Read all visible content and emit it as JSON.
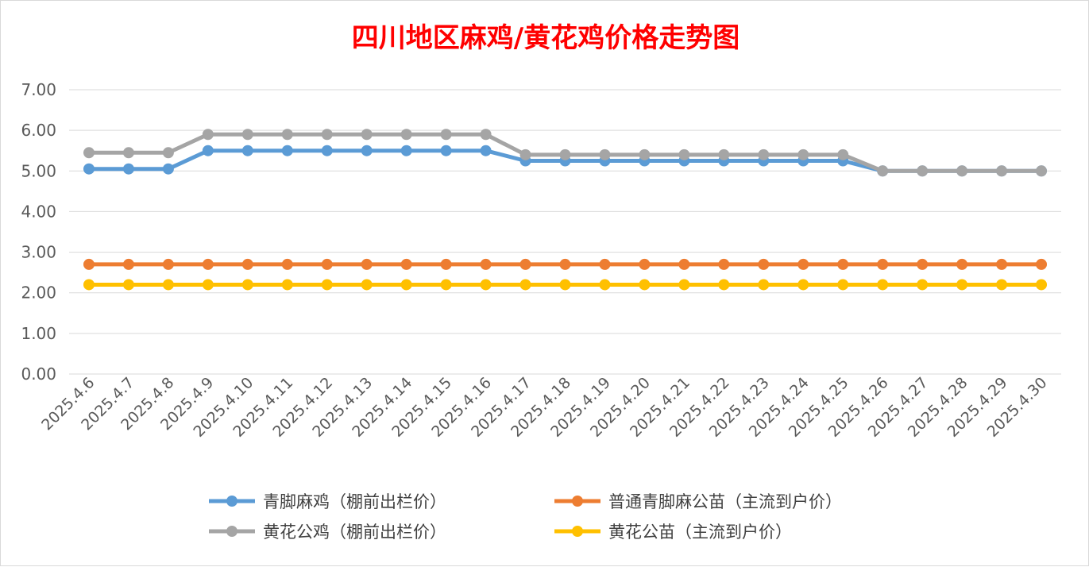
{
  "chart_data": {
    "type": "line",
    "title": "四川地区麻鸡/黄花鸡价格走势图",
    "xlabel": "",
    "ylabel": "",
    "ylim": [
      0,
      7
    ],
    "yticks": [
      "0.00",
      "1.00",
      "2.00",
      "3.00",
      "4.00",
      "5.00",
      "6.00",
      "7.00"
    ],
    "grid": true,
    "legend_position": "bottom",
    "categories": [
      "2025.4.6",
      "2025.4.7",
      "2025.4.8",
      "2025.4.9",
      "2025.4.10",
      "2025.4.11",
      "2025.4.12",
      "2025.4.13",
      "2025.4.14",
      "2025.4.15",
      "2025.4.16",
      "2025.4.17",
      "2025.4.18",
      "2025.4.19",
      "2025.4.20",
      "2025.4.21",
      "2025.4.22",
      "2025.4.23",
      "2025.4.24",
      "2025.4.25",
      "2025.4.26",
      "2025.4.27",
      "2025.4.28",
      "2025.4.29",
      "2025.4.30"
    ],
    "series": [
      {
        "name": "青脚麻鸡（棚前出栏价）",
        "color": "#5b9bd5",
        "values": [
          5.05,
          5.05,
          5.05,
          5.5,
          5.5,
          5.5,
          5.5,
          5.5,
          5.5,
          5.5,
          5.5,
          5.25,
          5.25,
          5.25,
          5.25,
          5.25,
          5.25,
          5.25,
          5.25,
          5.25,
          5.0,
          5.0,
          5.0,
          5.0,
          5.0
        ]
      },
      {
        "name": "普通青脚麻公苗（主流到户价）",
        "color": "#ed7d31",
        "values": [
          2.7,
          2.7,
          2.7,
          2.7,
          2.7,
          2.7,
          2.7,
          2.7,
          2.7,
          2.7,
          2.7,
          2.7,
          2.7,
          2.7,
          2.7,
          2.7,
          2.7,
          2.7,
          2.7,
          2.7,
          2.7,
          2.7,
          2.7,
          2.7,
          2.7
        ]
      },
      {
        "name": "黄花公鸡（棚前出栏价）",
        "color": "#a5a5a5",
        "values": [
          5.45,
          5.45,
          5.45,
          5.9,
          5.9,
          5.9,
          5.9,
          5.9,
          5.9,
          5.9,
          5.9,
          5.4,
          5.4,
          5.4,
          5.4,
          5.4,
          5.4,
          5.4,
          5.4,
          5.4,
          5.0,
          5.0,
          5.0,
          5.0,
          5.0
        ]
      },
      {
        "name": "黄花公苗（主流到户价）",
        "color": "#ffc000",
        "values": [
          2.2,
          2.2,
          2.2,
          2.2,
          2.2,
          2.2,
          2.2,
          2.2,
          2.2,
          2.2,
          2.2,
          2.2,
          2.2,
          2.2,
          2.2,
          2.2,
          2.2,
          2.2,
          2.2,
          2.2,
          2.2,
          2.2,
          2.2,
          2.2,
          2.2
        ]
      }
    ]
  }
}
